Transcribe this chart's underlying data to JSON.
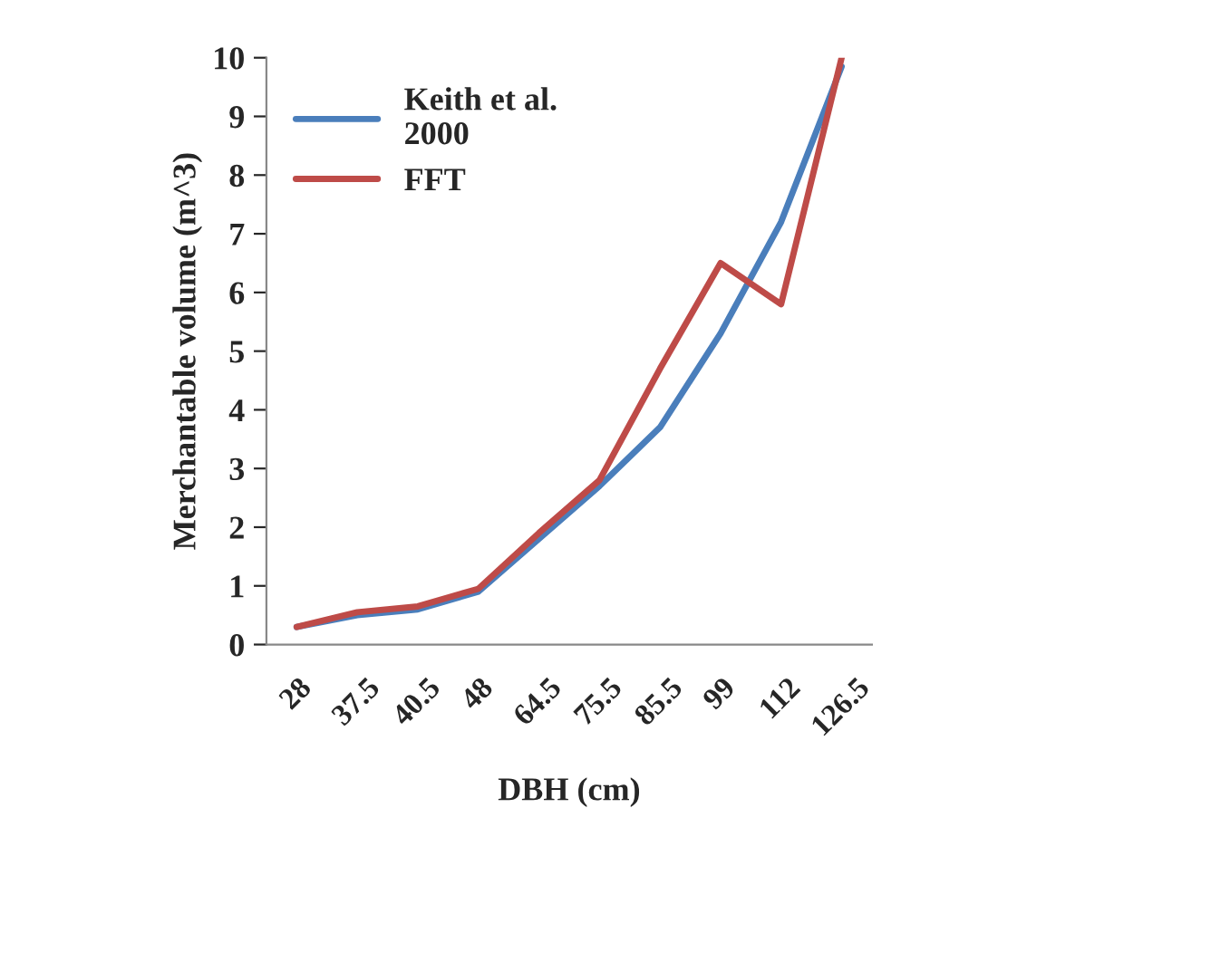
{
  "chart_data": {
    "type": "line",
    "xlabel": "DBH (cm)",
    "ylabel": "Merchantable volume (m^3)",
    "categories": [
      "28",
      "37.5",
      "40.5",
      "48",
      "64.5",
      "75.5",
      "85.5",
      "99",
      "112",
      "126.5"
    ],
    "series": [
      {
        "name": "Keith et al.\n2000",
        "color": "#4a7ebb",
        "values": [
          0.3,
          0.5,
          0.6,
          0.9,
          1.8,
          2.7,
          3.7,
          5.3,
          7.2,
          9.85
        ]
      },
      {
        "name": "FFT",
        "color": "#be4b48",
        "values": [
          0.3,
          0.55,
          0.65,
          0.95,
          1.9,
          2.8,
          4.7,
          6.5,
          5.8,
          10
        ]
      }
    ],
    "ylim": [
      0,
      10
    ],
    "yticks": [
      0,
      1,
      2,
      3,
      4,
      5,
      6,
      7,
      8,
      9,
      10
    ],
    "grid": false,
    "legend": "top left"
  }
}
